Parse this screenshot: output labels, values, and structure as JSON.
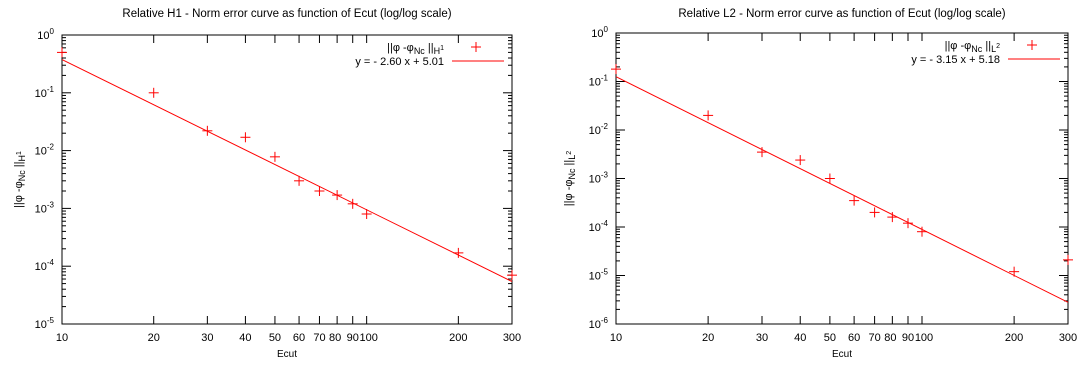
{
  "chart_data": [
    {
      "type": "scatter",
      "title": "Relative H1 - Norm error curve as function of Ecut (log/log scale)",
      "xlabel": "Ecut",
      "ylabel": "||φ -φNc ||H1",
      "xscale": "log",
      "yscale": "log",
      "xlim": [
        10,
        300
      ],
      "ylim": [
        1e-05,
        1
      ],
      "x_ticks": [
        10,
        20,
        30,
        40,
        50,
        60,
        70,
        80,
        90,
        100,
        200,
        300
      ],
      "x_tick_labels": [
        "10",
        "20",
        "30",
        "40",
        "50",
        "60",
        "70",
        "80",
        "90",
        "100",
        "200",
        "300"
      ],
      "y_tick_exponents": [
        -5,
        -4,
        -3,
        -2,
        -1,
        0
      ],
      "grid": false,
      "legend_position": "top-right",
      "series": [
        {
          "name": "||φ -φNc ||H1",
          "style": "points",
          "marker": "+",
          "x": [
            10,
            20,
            30,
            40,
            50,
            60,
            70,
            80,
            90,
            100,
            200,
            300
          ],
          "y": [
            0.5,
            0.1,
            0.022,
            0.017,
            0.0078,
            0.003,
            0.002,
            0.0017,
            0.0012,
            0.0008,
            0.00017,
            7e-05
          ]
        },
        {
          "name": "y = - 2.60 x + 5.01",
          "style": "line",
          "slope": -2.6,
          "intercept": 5.01,
          "x_range": [
            10,
            300
          ]
        }
      ],
      "colors": {
        "series": "#ff0000",
        "axes": "#000000"
      }
    },
    {
      "type": "scatter",
      "title": "Relative L2 - Norm error curve as function of Ecut (log/log scale)",
      "xlabel": "Ecut",
      "ylabel": "||φ -φNc ||L2",
      "xscale": "log",
      "yscale": "log",
      "xlim": [
        10,
        300
      ],
      "ylim": [
        1e-06,
        1
      ],
      "x_ticks": [
        10,
        20,
        30,
        40,
        50,
        60,
        70,
        80,
        90,
        100,
        200,
        300
      ],
      "x_tick_labels": [
        "10",
        "20",
        "30",
        "40",
        "50",
        "60",
        "70",
        "80",
        "90",
        "100",
        "200",
        "300"
      ],
      "y_tick_exponents": [
        -6,
        -5,
        -4,
        -3,
        -2,
        -1,
        0
      ],
      "grid": false,
      "legend_position": "top-right",
      "series": [
        {
          "name": "||φ -φNc ||L2",
          "style": "points",
          "marker": "+",
          "x": [
            10,
            20,
            30,
            40,
            50,
            60,
            70,
            80,
            90,
            100,
            200,
            300
          ],
          "y": [
            0.18,
            0.02,
            0.0035,
            0.0024,
            0.001,
            0.00035,
            0.0002,
            0.00016,
            0.00012,
            8e-05,
            1.2e-05,
            2.1e-05
          ]
        },
        {
          "name": "y = - 3.15 x + 5.18",
          "style": "line",
          "slope": -3.15,
          "intercept": 5.18,
          "x_range": [
            10,
            300
          ]
        }
      ],
      "colors": {
        "series": "#ff0000",
        "axes": "#000000"
      }
    }
  ]
}
